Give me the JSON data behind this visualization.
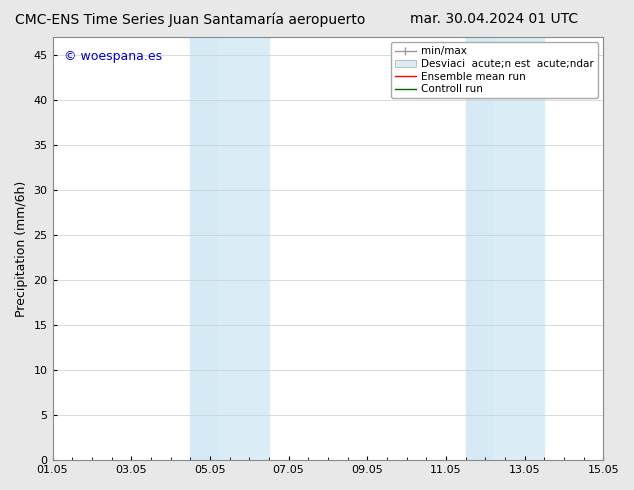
{
  "title_left": "CMC-ENS Time Series Juan Santamaría aeropuerto",
  "title_right": "mar. 30.04.2024 01 UTC",
  "ylabel": "Precipitation (mm/6h)",
  "xlabel": "",
  "watermark": "© woespana.es",
  "watermark_color": "#0000cc",
  "ylim": [
    0,
    47
  ],
  "yticks": [
    0,
    5,
    10,
    15,
    20,
    25,
    30,
    35,
    40,
    45
  ],
  "xtick_labels": [
    "01.05",
    "03.05",
    "05.05",
    "07.05",
    "09.05",
    "11.05",
    "13.05",
    "15.05"
  ],
  "xtick_positions": [
    0,
    2,
    4,
    6,
    8,
    10,
    12,
    14
  ],
  "shaded_regions": [
    {
      "xmin": 3.5,
      "xmax": 4.2,
      "color": "#d6eaf5"
    },
    {
      "xmin": 4.2,
      "xmax": 5.5,
      "color": "#daedf7"
    },
    {
      "xmin": 10.5,
      "xmax": 11.2,
      "color": "#d6eaf5"
    },
    {
      "xmin": 11.2,
      "xmax": 12.5,
      "color": "#daedf7"
    }
  ],
  "bg_color": "#e8e8e8",
  "plot_bg_color": "#ffffff",
  "grid_color": "#cccccc",
  "border_color": "#888888",
  "legend_items": [
    {
      "label": "min/max",
      "color": "#999999",
      "lw": 1.0,
      "linestyle": "-"
    },
    {
      "label": "Desviaci  acute;n est  acute;ndar",
      "color": "#c8dcea",
      "lw": 6,
      "linestyle": "-"
    },
    {
      "label": "Ensemble mean run",
      "color": "#ff0000",
      "lw": 1.0,
      "linestyle": "-"
    },
    {
      "label": "Controll run",
      "color": "#006400",
      "lw": 1.0,
      "linestyle": "-"
    }
  ],
  "title_fontsize": 10,
  "axis_fontsize": 9,
  "tick_fontsize": 8,
  "legend_fontsize": 7.5
}
